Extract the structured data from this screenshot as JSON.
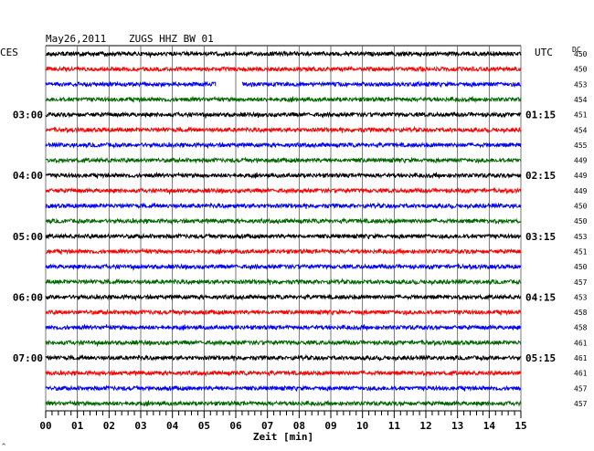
{
  "header": {
    "date": "May26,2011",
    "station": "ZUGS HHZ BW 01",
    "left_tz": "CES",
    "right_tz": "UTC",
    "dc_label": "DC"
  },
  "footer": {
    "xlabel": "Zeit [min]",
    "corner_mark": "^"
  },
  "chart_data": {
    "type": "line",
    "title": "May26,2011   ZUGS HHZ BW 01",
    "xlabel": "Zeit [min]",
    "x_ticks": [
      "00",
      "01",
      "02",
      "03",
      "04",
      "05",
      "06",
      "07",
      "08",
      "09",
      "10",
      "11",
      "12",
      "13",
      "14",
      "15"
    ],
    "xlim": [
      0,
      15
    ],
    "trace_colors": [
      "#000000",
      "#ff0000",
      "#0000ff",
      "#006600"
    ],
    "grid": "vertical lines each minute",
    "left_time_labels": [
      {
        "row": 4,
        "label": "03:00"
      },
      {
        "row": 8,
        "label": "04:00"
      },
      {
        "row": 12,
        "label": "05:00"
      },
      {
        "row": 16,
        "label": "06:00"
      },
      {
        "row": 20,
        "label": "07:00"
      }
    ],
    "right_time_labels": [
      {
        "row": 4,
        "label": "01:15"
      },
      {
        "row": 8,
        "label": "02:15"
      },
      {
        "row": 12,
        "label": "03:15"
      },
      {
        "row": 16,
        "label": "04:15"
      },
      {
        "row": 20,
        "label": "05:15"
      }
    ],
    "dc_values": [
      "450",
      "450",
      "453",
      "454",
      "451",
      "454",
      "455",
      "449",
      "449",
      "449",
      "450",
      "450",
      "453",
      "451",
      "450",
      "457",
      "453",
      "458",
      "458",
      "461",
      "461",
      "461",
      "457",
      "457"
    ],
    "data_gap": {
      "row": 2,
      "start_min": 5.3,
      "end_min": 6.2
    }
  }
}
